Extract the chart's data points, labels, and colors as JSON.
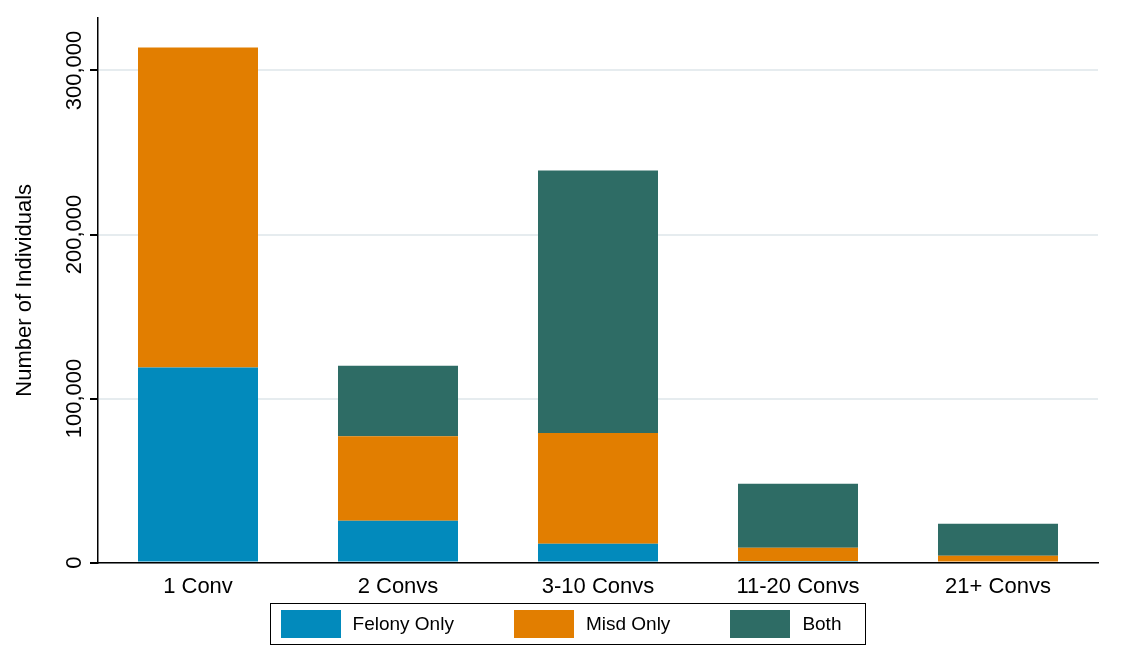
{
  "chart_data": {
    "type": "bar",
    "stacked": true,
    "ylabel": "Number of Individuals",
    "categories": [
      "1 Conv",
      "2 Convs",
      "3-10 Convs",
      "11-20 Convs",
      "21+ Convs"
    ],
    "series": [
      {
        "name": "Felony Only",
        "color": "#028abc",
        "values": [
          119000,
          25500,
          11500,
          1000,
          0
        ]
      },
      {
        "name": "Misd Only",
        "color": "#e27e00",
        "values": [
          195000,
          51500,
          67500,
          8000,
          4200
        ]
      },
      {
        "name": "Both",
        "color": "#2e6c65",
        "values": [
          0,
          43000,
          160000,
          39000,
          19500
        ]
      }
    ],
    "ylim": [
      0,
      332000
    ],
    "yticks": [
      {
        "value": 0,
        "label": "0"
      },
      {
        "value": 100000,
        "label": "100,000"
      },
      {
        "value": 200000,
        "label": "200,000"
      },
      {
        "value": 300000,
        "label": "300,000"
      }
    ],
    "grid": "y",
    "legend": "bottom"
  }
}
